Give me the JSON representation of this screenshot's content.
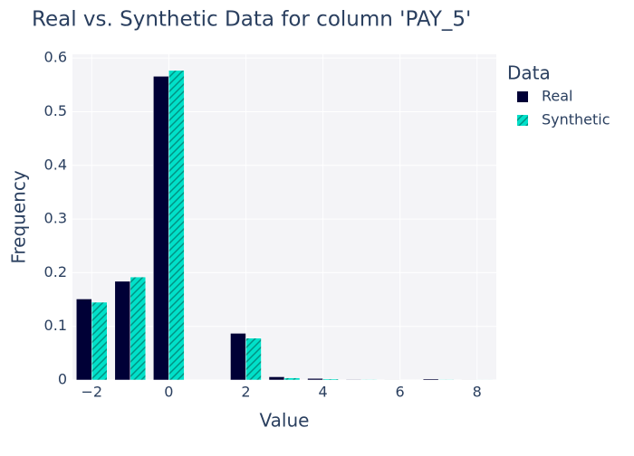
{
  "chart_data": {
    "type": "bar",
    "title": "Real vs. Synthetic Data for column 'PAY_5'",
    "x_label": "Value",
    "y_label": "Frequency",
    "x": [
      -2,
      -1,
      0,
      2,
      3,
      4,
      5,
      6,
      7,
      8
    ],
    "series": [
      {
        "name": "Real",
        "color": "#000036",
        "values": [
          0.151,
          0.184,
          0.566,
          0.087,
          0.006,
          0.003,
          0.001,
          0.0003,
          0.002,
          0.0001
        ]
      },
      {
        "name": "Synthetic",
        "color": "#01e0c9",
        "pattern": "hatch",
        "values": [
          0.145,
          0.192,
          0.577,
          0.078,
          0.004,
          0.002,
          0.001,
          0.0005,
          0.001,
          0.0003
        ]
      }
    ],
    "legend_title": "Data",
    "xlim": [
      -2.5,
      8.5
    ],
    "xticks": [
      {
        "value": -2,
        "label": "−2"
      },
      0,
      2,
      4,
      6,
      8
    ],
    "ylim": [
      0,
      0.607
    ],
    "yticks": [
      0,
      0.1,
      0.2,
      0.3,
      0.4,
      0.5,
      0.6
    ],
    "grid": true,
    "legend_position": "right"
  }
}
